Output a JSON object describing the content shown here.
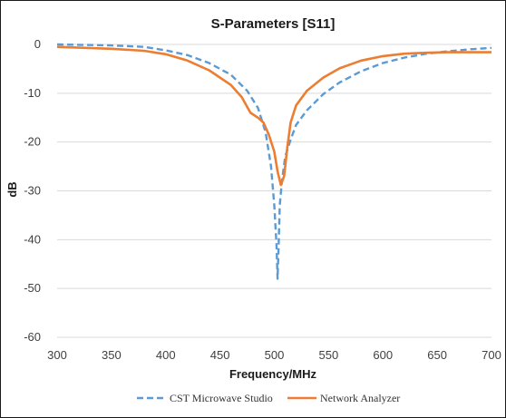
{
  "chart_data": {
    "type": "line",
    "title": "S-Parameters [S11]",
    "xlabel": "Frequency/MHz",
    "ylabel": "dB",
    "xlim": [
      300,
      700
    ],
    "ylim": [
      -60,
      0
    ],
    "xticks": [
      300,
      350,
      400,
      450,
      500,
      550,
      600,
      650,
      700
    ],
    "yticks": [
      0,
      -10,
      -20,
      -30,
      -40,
      -50,
      -60
    ],
    "grid": "horizontal",
    "legend": "bottom",
    "series": [
      {
        "name": "CST Microwave Studio",
        "color": "#5B9BD5",
        "style": "dashed",
        "points": [
          [
            300,
            0
          ],
          [
            350,
            -0.2
          ],
          [
            380,
            -0.5
          ],
          [
            400,
            -1.2
          ],
          [
            420,
            -2.2
          ],
          [
            440,
            -3.8
          ],
          [
            460,
            -6.2
          ],
          [
            475,
            -9.5
          ],
          [
            485,
            -13
          ],
          [
            492,
            -18
          ],
          [
            497,
            -25
          ],
          [
            500,
            -33
          ],
          [
            502,
            -41
          ],
          [
            503,
            -48
          ],
          [
            504,
            -41
          ],
          [
            505,
            -33
          ],
          [
            507,
            -28
          ],
          [
            510,
            -23
          ],
          [
            515,
            -19.5
          ],
          [
            520,
            -16.5
          ],
          [
            530,
            -13.5
          ],
          [
            545,
            -10.2
          ],
          [
            560,
            -7.8
          ],
          [
            580,
            -5.5
          ],
          [
            600,
            -3.8
          ],
          [
            620,
            -2.7
          ],
          [
            640,
            -1.9
          ],
          [
            660,
            -1.4
          ],
          [
            680,
            -1.0
          ],
          [
            700,
            -0.7
          ]
        ]
      },
      {
        "name": "Network Analyzer",
        "color": "#ED7D31",
        "style": "solid",
        "points": [
          [
            300,
            -0.5
          ],
          [
            350,
            -0.9
          ],
          [
            380,
            -1.3
          ],
          [
            400,
            -2.0
          ],
          [
            420,
            -3.3
          ],
          [
            440,
            -5.3
          ],
          [
            460,
            -8.3
          ],
          [
            470,
            -10.8
          ],
          [
            478,
            -14
          ],
          [
            485,
            -15
          ],
          [
            490,
            -16
          ],
          [
            495,
            -18.5
          ],
          [
            500,
            -22
          ],
          [
            503,
            -26
          ],
          [
            506,
            -28.8
          ],
          [
            509,
            -27
          ],
          [
            512,
            -21
          ],
          [
            515,
            -16
          ],
          [
            520,
            -12.5
          ],
          [
            530,
            -9.5
          ],
          [
            545,
            -6.8
          ],
          [
            560,
            -4.9
          ],
          [
            580,
            -3.3
          ],
          [
            600,
            -2.4
          ],
          [
            620,
            -1.9
          ],
          [
            640,
            -1.7
          ],
          [
            660,
            -1.6
          ],
          [
            680,
            -1.6
          ],
          [
            700,
            -1.6
          ]
        ]
      }
    ]
  }
}
